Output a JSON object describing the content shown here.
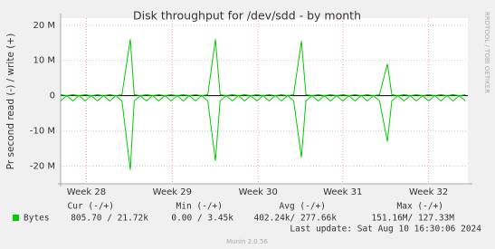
{
  "chart_data": {
    "type": "line",
    "title": "Disk throughput for /dev/sdd - by month",
    "y_label": "Pr second read (-) / write (+)",
    "side_label": "RRDTOOL / TOBI OETIKER",
    "xlim": [
      0,
      33.2
    ],
    "xticks": [
      {
        "value": 2.1,
        "label": "Week 28"
      },
      {
        "value": 9.1,
        "label": "Week 29"
      },
      {
        "value": 16.1,
        "label": "Week 30"
      },
      {
        "value": 23.0,
        "label": "Week 31"
      },
      {
        "value": 30.0,
        "label": "Week 32"
      }
    ],
    "ylim": [
      -25000000,
      22000000
    ],
    "yticks": [
      {
        "value": 20000000,
        "label": "20 M"
      },
      {
        "value": 10000000,
        "label": "10 M"
      },
      0,
      {
        "value": -10000000,
        "label": "-10 M"
      },
      {
        "value": -20000000,
        "label": "-20 M"
      }
    ],
    "grid": true,
    "x": [
      0,
      0.5,
      1,
      1.5,
      2,
      2.5,
      3,
      3.5,
      4,
      4.5,
      5,
      5.68,
      6,
      6.5,
      7,
      7.5,
      8,
      8.5,
      9,
      9.5,
      10,
      10.5,
      11,
      11.5,
      12,
      12.62,
      13,
      13.5,
      14,
      14.5,
      15,
      15.5,
      16,
      16.5,
      17,
      17.5,
      18,
      18.5,
      19,
      19.63,
      20,
      20.5,
      21,
      21.5,
      22,
      22.5,
      23,
      23.5,
      24,
      24.5,
      25,
      25.5,
      26,
      26.64,
      27,
      27.5,
      28,
      28.5,
      29,
      29.5,
      30,
      30.5,
      31,
      31.5,
      32,
      32.5,
      33
    ],
    "series": [
      {
        "name": "Bytes",
        "color": "#00cc00",
        "values": [
          300000,
          0,
          300000,
          0,
          300000,
          0,
          300000,
          0,
          300000,
          0,
          300000,
          16000000,
          300000,
          0,
          300000,
          0,
          300000,
          0,
          300000,
          0,
          300000,
          0,
          300000,
          0,
          300000,
          16000000,
          300000,
          0,
          300000,
          0,
          300000,
          0,
          300000,
          0,
          300000,
          0,
          300000,
          0,
          300000,
          15500000,
          300000,
          0,
          300000,
          0,
          300000,
          0,
          300000,
          0,
          300000,
          0,
          300000,
          0,
          300000,
          9000000,
          300000,
          0,
          300000,
          0,
          300000,
          0,
          300000,
          0,
          300000,
          0,
          300000,
          0,
          300000
        ],
        "read_values": [
          -1500000,
          0,
          -1500000,
          0,
          -1500000,
          0,
          -1500000,
          0,
          -1500000,
          0,
          -1500000,
          -21000000,
          -1500000,
          0,
          -1500000,
          0,
          -1500000,
          0,
          -1500000,
          0,
          -1500000,
          0,
          -1500000,
          0,
          -1500000,
          -18500000,
          -1500000,
          0,
          -1500000,
          0,
          -1500000,
          0,
          -1500000,
          0,
          -1500000,
          0,
          -1500000,
          0,
          -1500000,
          -17500000,
          -1500000,
          0,
          -1500000,
          0,
          -1500000,
          0,
          -1500000,
          0,
          -1500000,
          0,
          -1500000,
          0,
          -1500000,
          -13000000,
          -1500000,
          0,
          -1500000,
          0,
          -1500000,
          0,
          -1500000,
          0,
          -1500000,
          0,
          -1500000,
          0,
          -1500000
        ],
        "cur": "805.70 /  21.72k",
        "min": "0.00 /   3.45k",
        "avg": "402.24k/ 277.66k",
        "max": "151.16M/ 127.33M"
      }
    ],
    "legend_headers": [
      "Cur (-/+)",
      "Min (-/+)",
      "Avg (-/+)",
      "Max (-/+)"
    ],
    "last_update": "Last update: Sat Aug 10 16:30:06 2024",
    "footer": "Munin 2.0.56"
  }
}
